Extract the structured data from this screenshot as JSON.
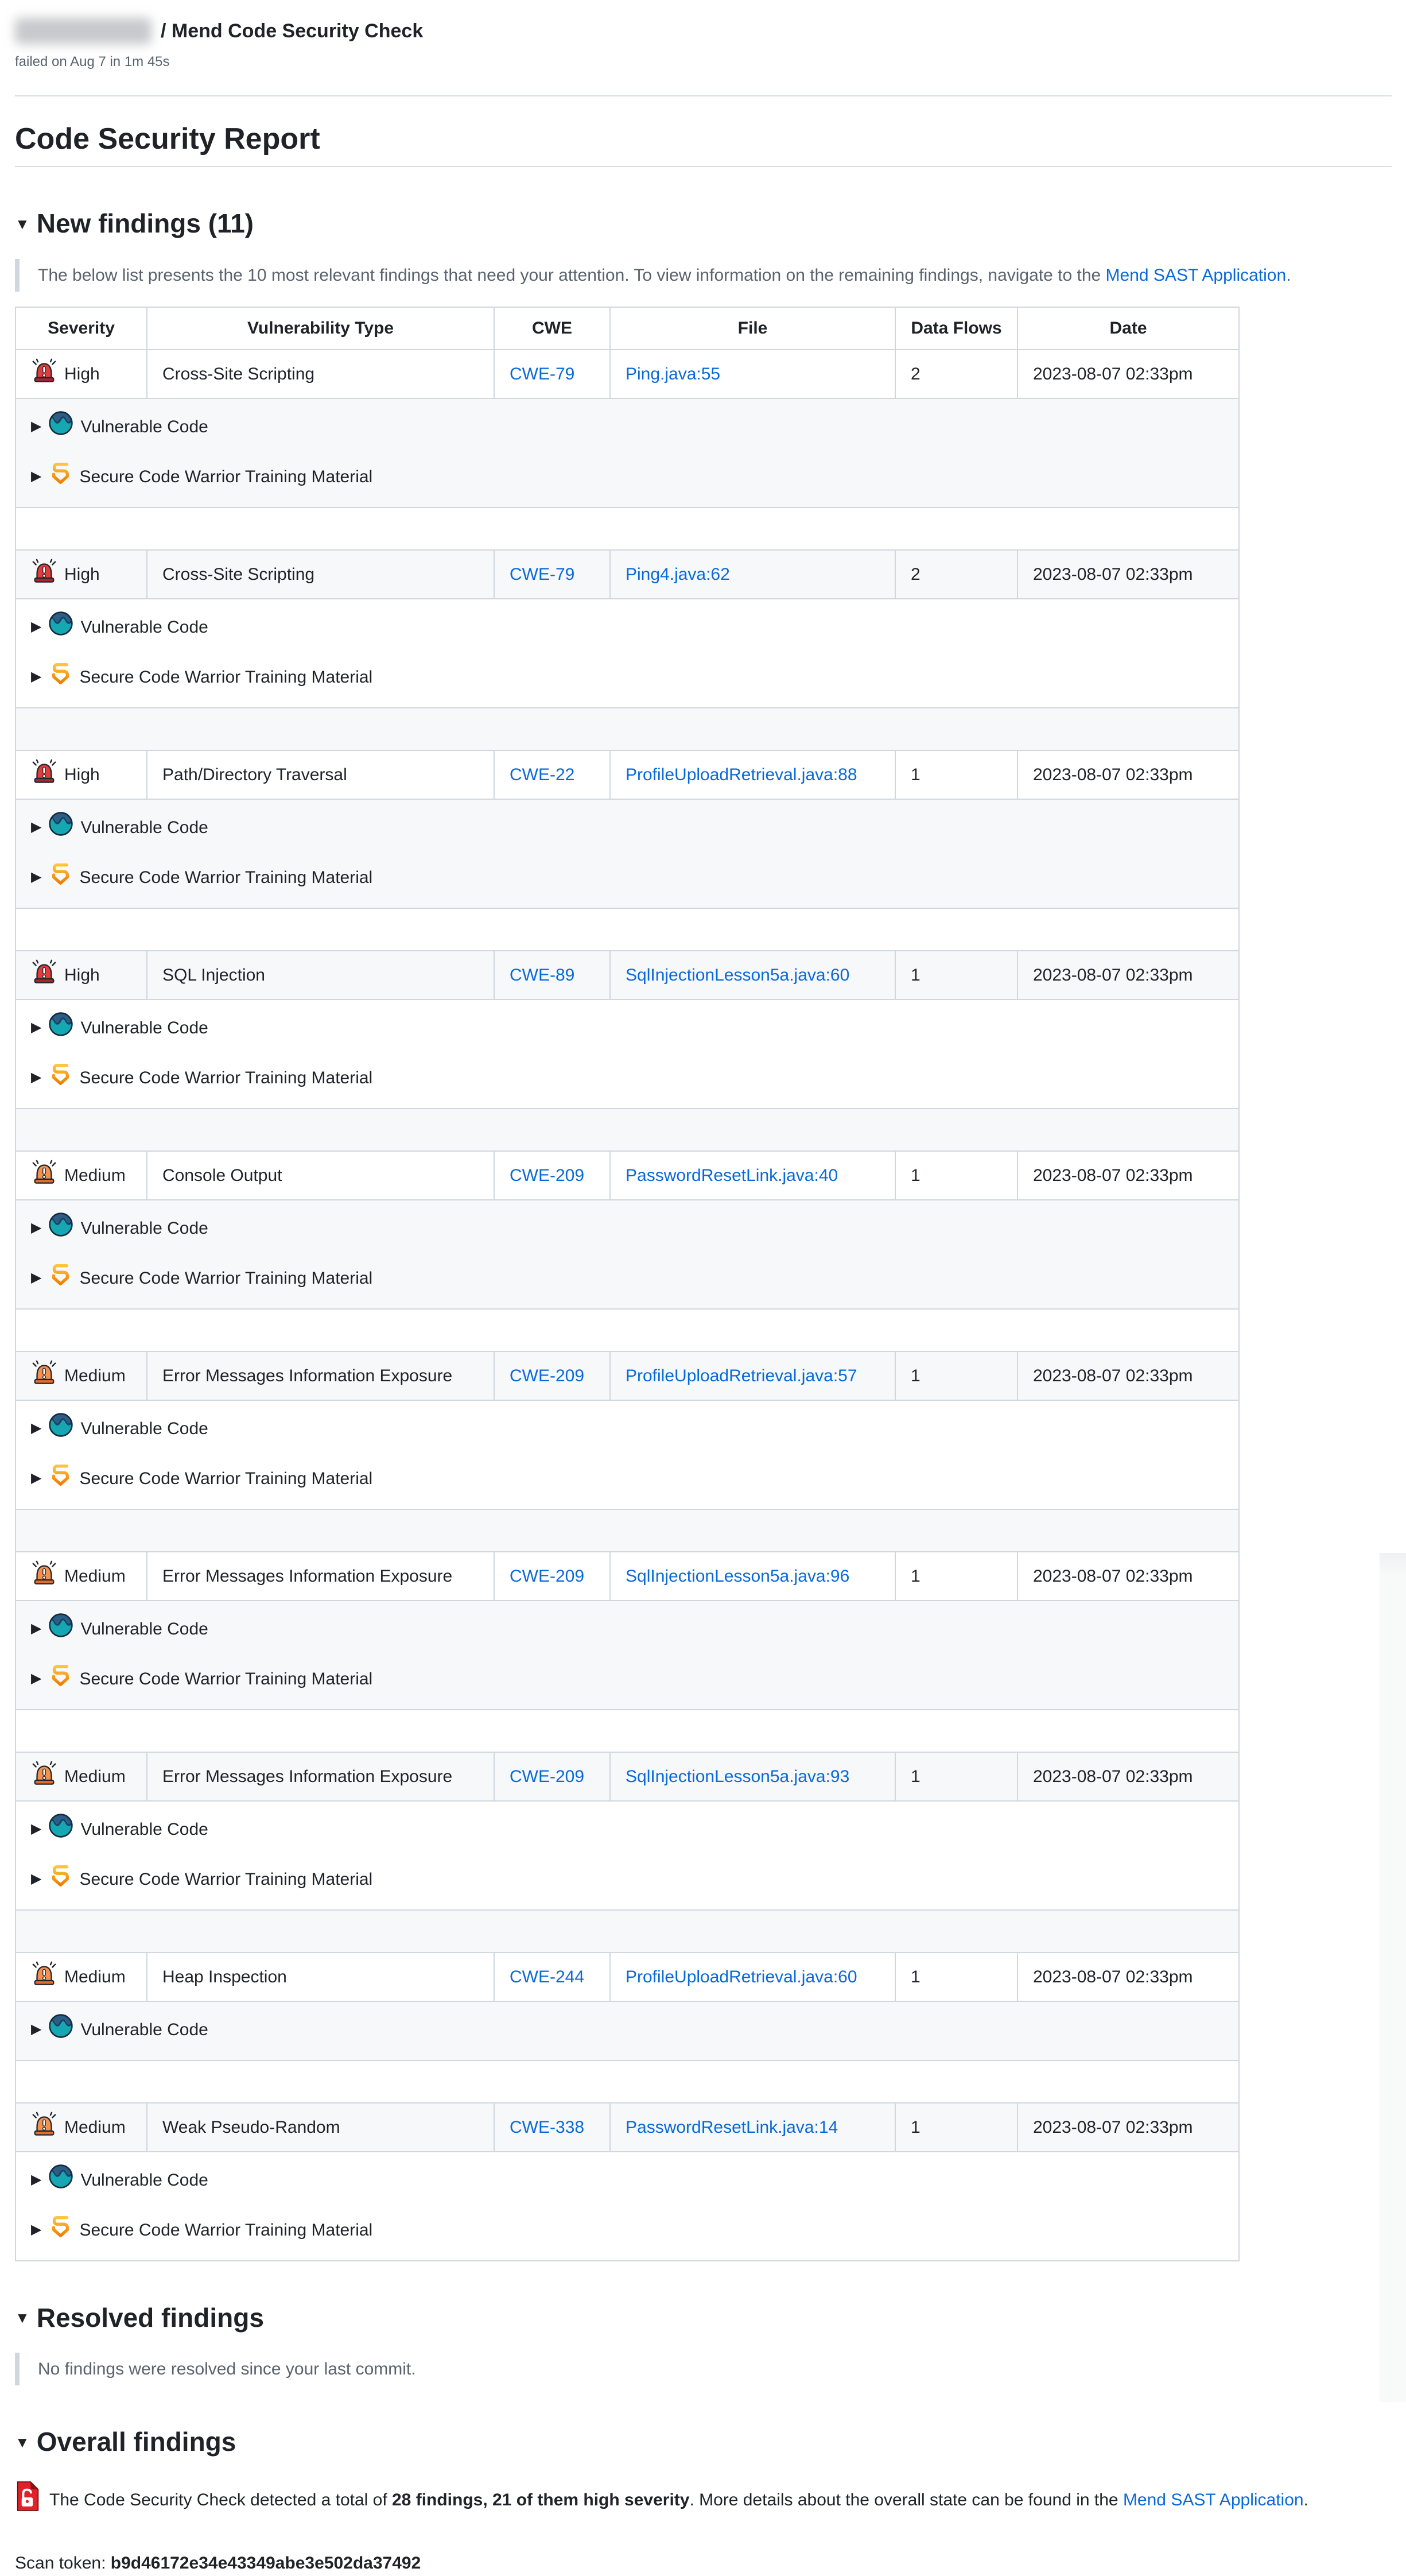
{
  "header": {
    "check_name": "/ Mend Code Security Check",
    "status_line": "failed on Aug 7 in 1m 45s"
  },
  "report": {
    "title": "Code Security Report"
  },
  "icons": {
    "collapse_marker": "▼",
    "expand_marker": "▶"
  },
  "colors": {
    "link": "#0969da",
    "text": "#1f2328",
    "muted": "#59636e",
    "border": "#d0d7de",
    "stripe": "#f6f8fa",
    "high": "#e23d3d",
    "medium": "#f4914e",
    "vuln_icon_teal": "#15a7b2",
    "scw_orange": "#f29b1d",
    "alert_red": "#e12228"
  },
  "sections": {
    "new_findings": {
      "label": "New findings (11)",
      "note_prefix": "The below list presents the 10 most relevant findings that need your attention. To view information on the remaining findings, navigate to the ",
      "note_link": "Mend SAST Application",
      "note_suffix": "."
    },
    "resolved": {
      "label": "Resolved findings",
      "note": "No findings were resolved since your last commit."
    },
    "overall": {
      "label": "Overall findings",
      "text_prefix": "The Code Security Check detected a total of ",
      "text_bold": "28 findings, 21 of them high severity",
      "text_mid": ". More details about the overall state can be found in the ",
      "text_link": "Mend SAST Application",
      "text_suffix": "."
    }
  },
  "scan_token": {
    "label": "Scan token: ",
    "value": "b9d46172e34e43349abe3e502da37492"
  },
  "table": {
    "headers": [
      "Severity",
      "Vulnerability Type",
      "CWE",
      "File",
      "Data Flows",
      "Date"
    ],
    "details_labels": {
      "vulnerable_code": "Vulnerable Code",
      "training": "Secure Code Warrior Training Material"
    },
    "rows": [
      {
        "severity": "High",
        "type": "Cross-Site Scripting",
        "cwe": "CWE-79",
        "file": "Ping.java:55",
        "flows": "2",
        "date": "2023-08-07 02:33pm",
        "has_training": true
      },
      {
        "severity": "High",
        "type": "Cross-Site Scripting",
        "cwe": "CWE-79",
        "file": "Ping4.java:62",
        "flows": "2",
        "date": "2023-08-07 02:33pm",
        "has_training": true
      },
      {
        "severity": "High",
        "type": "Path/Directory Traversal",
        "cwe": "CWE-22",
        "file": "ProfileUploadRetrieval.java:88",
        "flows": "1",
        "date": "2023-08-07 02:33pm",
        "has_training": true
      },
      {
        "severity": "High",
        "type": "SQL Injection",
        "cwe": "CWE-89",
        "file": "SqlInjectionLesson5a.java:60",
        "flows": "1",
        "date": "2023-08-07 02:33pm",
        "has_training": true
      },
      {
        "severity": "Medium",
        "type": "Console Output",
        "cwe": "CWE-209",
        "file": "PasswordResetLink.java:40",
        "flows": "1",
        "date": "2023-08-07 02:33pm",
        "has_training": true
      },
      {
        "severity": "Medium",
        "type": "Error Messages Information Exposure",
        "cwe": "CWE-209",
        "file": "ProfileUploadRetrieval.java:57",
        "flows": "1",
        "date": "2023-08-07 02:33pm",
        "has_training": true
      },
      {
        "severity": "Medium",
        "type": "Error Messages Information Exposure",
        "cwe": "CWE-209",
        "file": "SqlInjectionLesson5a.java:96",
        "flows": "1",
        "date": "2023-08-07 02:33pm",
        "has_training": true
      },
      {
        "severity": "Medium",
        "type": "Error Messages Information Exposure",
        "cwe": "CWE-209",
        "file": "SqlInjectionLesson5a.java:93",
        "flows": "1",
        "date": "2023-08-07 02:33pm",
        "has_training": true
      },
      {
        "severity": "Medium",
        "type": "Heap Inspection",
        "cwe": "CWE-244",
        "file": "ProfileUploadRetrieval.java:60",
        "flows": "1",
        "date": "2023-08-07 02:33pm",
        "has_training": false
      },
      {
        "severity": "Medium",
        "type": "Weak Pseudo-Random",
        "cwe": "CWE-338",
        "file": "PasswordResetLink.java:14",
        "flows": "1",
        "date": "2023-08-07 02:33pm",
        "has_training": true
      }
    ]
  }
}
